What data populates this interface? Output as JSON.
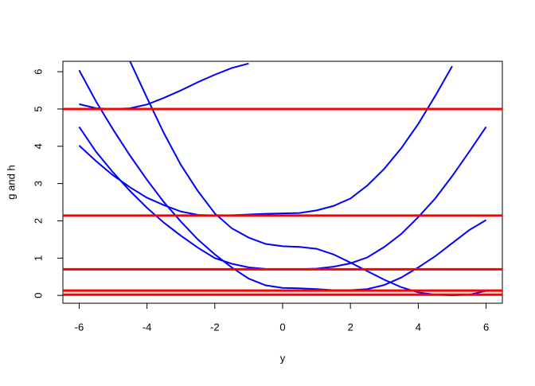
{
  "chart_data": {
    "type": "line",
    "x_label": "y",
    "y_label": "g and h",
    "x": [
      -6,
      -5.5,
      -5,
      -4.5,
      -4,
      -3.5,
      -3,
      -2.5,
      -2,
      -1.5,
      -1,
      -0.5,
      0,
      0.5,
      1,
      1.5,
      2,
      2.5,
      3,
      3.5,
      4,
      4.5,
      5,
      5.5,
      6
    ],
    "series": [
      {
        "color": "#0000ff",
        "values": [
          5.13,
          5.02,
          5.0,
          5.02,
          5.12,
          5.3,
          5.5,
          5.72,
          5.92,
          6.1,
          6.22,
          null,
          null,
          null,
          null,
          null,
          null,
          null,
          null,
          null,
          null,
          null,
          null,
          null,
          null
        ]
      },
      {
        "color": "#0000ff",
        "values": [
          null,
          null,
          null,
          6.28,
          5.3,
          4.35,
          3.5,
          2.8,
          2.2,
          1.8,
          1.55,
          1.38,
          1.32,
          1.3,
          1.25,
          1.1,
          0.88,
          0.65,
          0.42,
          0.22,
          0.08,
          0.02,
          0.0,
          0.02,
          0.12
        ]
      },
      {
        "color": "#0000ff",
        "values": [
          6.04,
          5.2,
          4.45,
          3.75,
          3.1,
          2.5,
          1.98,
          1.5,
          1.1,
          0.75,
          0.45,
          0.27,
          0.2,
          0.19,
          0.17,
          0.14,
          0.14,
          0.17,
          0.28,
          0.48,
          0.75,
          1.05,
          1.4,
          1.75,
          2.02
        ]
      },
      {
        "color": "#0000ff",
        "values": [
          4.52,
          3.85,
          3.3,
          2.8,
          2.35,
          1.95,
          1.6,
          1.28,
          1.0,
          0.85,
          0.75,
          0.71,
          0.7,
          0.7,
          0.72,
          0.77,
          0.86,
          1.02,
          1.3,
          1.65,
          2.1,
          2.6,
          3.2,
          3.85,
          4.52
        ]
      },
      {
        "color": "#0000ff",
        "values": [
          4.02,
          3.6,
          3.22,
          2.9,
          2.62,
          2.42,
          2.25,
          2.16,
          2.14,
          2.15,
          2.17,
          2.19,
          2.2,
          2.21,
          2.28,
          2.4,
          2.6,
          2.95,
          3.4,
          3.95,
          4.6,
          5.35,
          6.15,
          null,
          null
        ]
      }
    ],
    "hlines": [
      5,
      2.14,
      0.7,
      0.13,
      0.02
    ],
    "hline_color": "#ff0000",
    "xlim": [
      -6.48,
      6.48
    ],
    "ylim": [
      -0.21,
      6.28
    ],
    "xticks": [
      -6,
      -4,
      -2,
      0,
      2,
      4,
      6
    ],
    "yticks": [
      0,
      1,
      2,
      3,
      4,
      5,
      6
    ]
  }
}
